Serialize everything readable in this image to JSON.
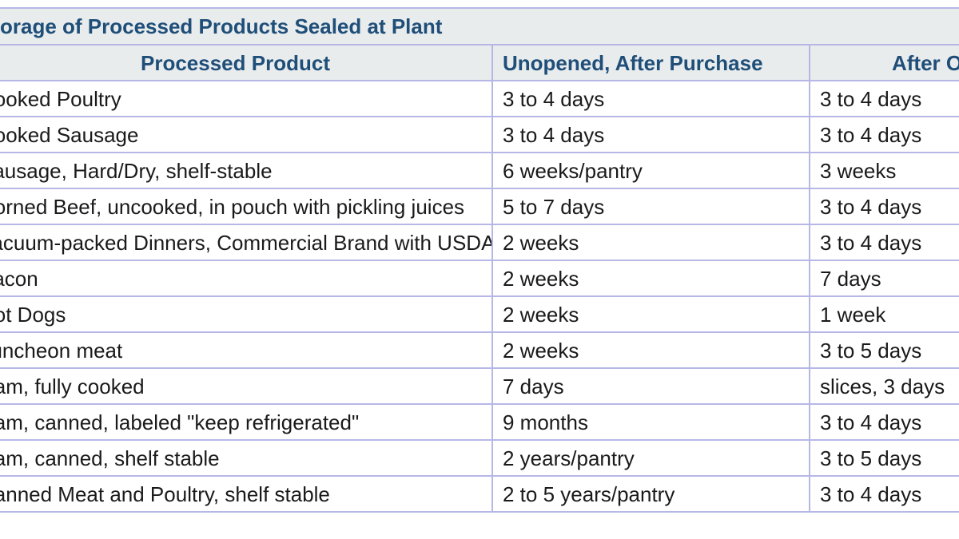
{
  "table": {
    "caption": "Storage of Processed Products Sealed at Plant",
    "headers": [
      "Processed Product",
      "Unopened, After Purchase",
      "After Opening"
    ],
    "rows": [
      [
        "Cooked Poultry",
        "3 to 4 days",
        "3 to 4 days"
      ],
      [
        "Cooked Sausage",
        "3 to 4 days",
        "3 to 4 days"
      ],
      [
        "Sausage, Hard/Dry, shelf-stable",
        "6 weeks/pantry",
        "3 weeks"
      ],
      [
        "Corned Beef, uncooked, in pouch with pickling juices",
        "5 to 7 days",
        "3 to 4 days"
      ],
      [
        "Vacuum-packed Dinners, Commercial Brand with USDA seal",
        "2 weeks",
        "3 to 4 days"
      ],
      [
        "Bacon",
        "2 weeks",
        "7 days"
      ],
      [
        "Hot Dogs",
        "2 weeks",
        "1 week"
      ],
      [
        "Luncheon meat",
        "2 weeks",
        "3 to 5 days"
      ],
      [
        "Ham, fully cooked",
        "7 days",
        "slices, 3 days"
      ],
      [
        "Ham, canned, labeled \"keep refrigerated\"",
        "9 months",
        "3 to 4 days"
      ],
      [
        "Ham, canned, shelf stable",
        "2 years/pantry",
        "3 to 5 days"
      ],
      [
        "Canned Meat and Poultry, shelf stable",
        "2 to 5 years/pantry",
        "3 to 4 days"
      ]
    ]
  }
}
